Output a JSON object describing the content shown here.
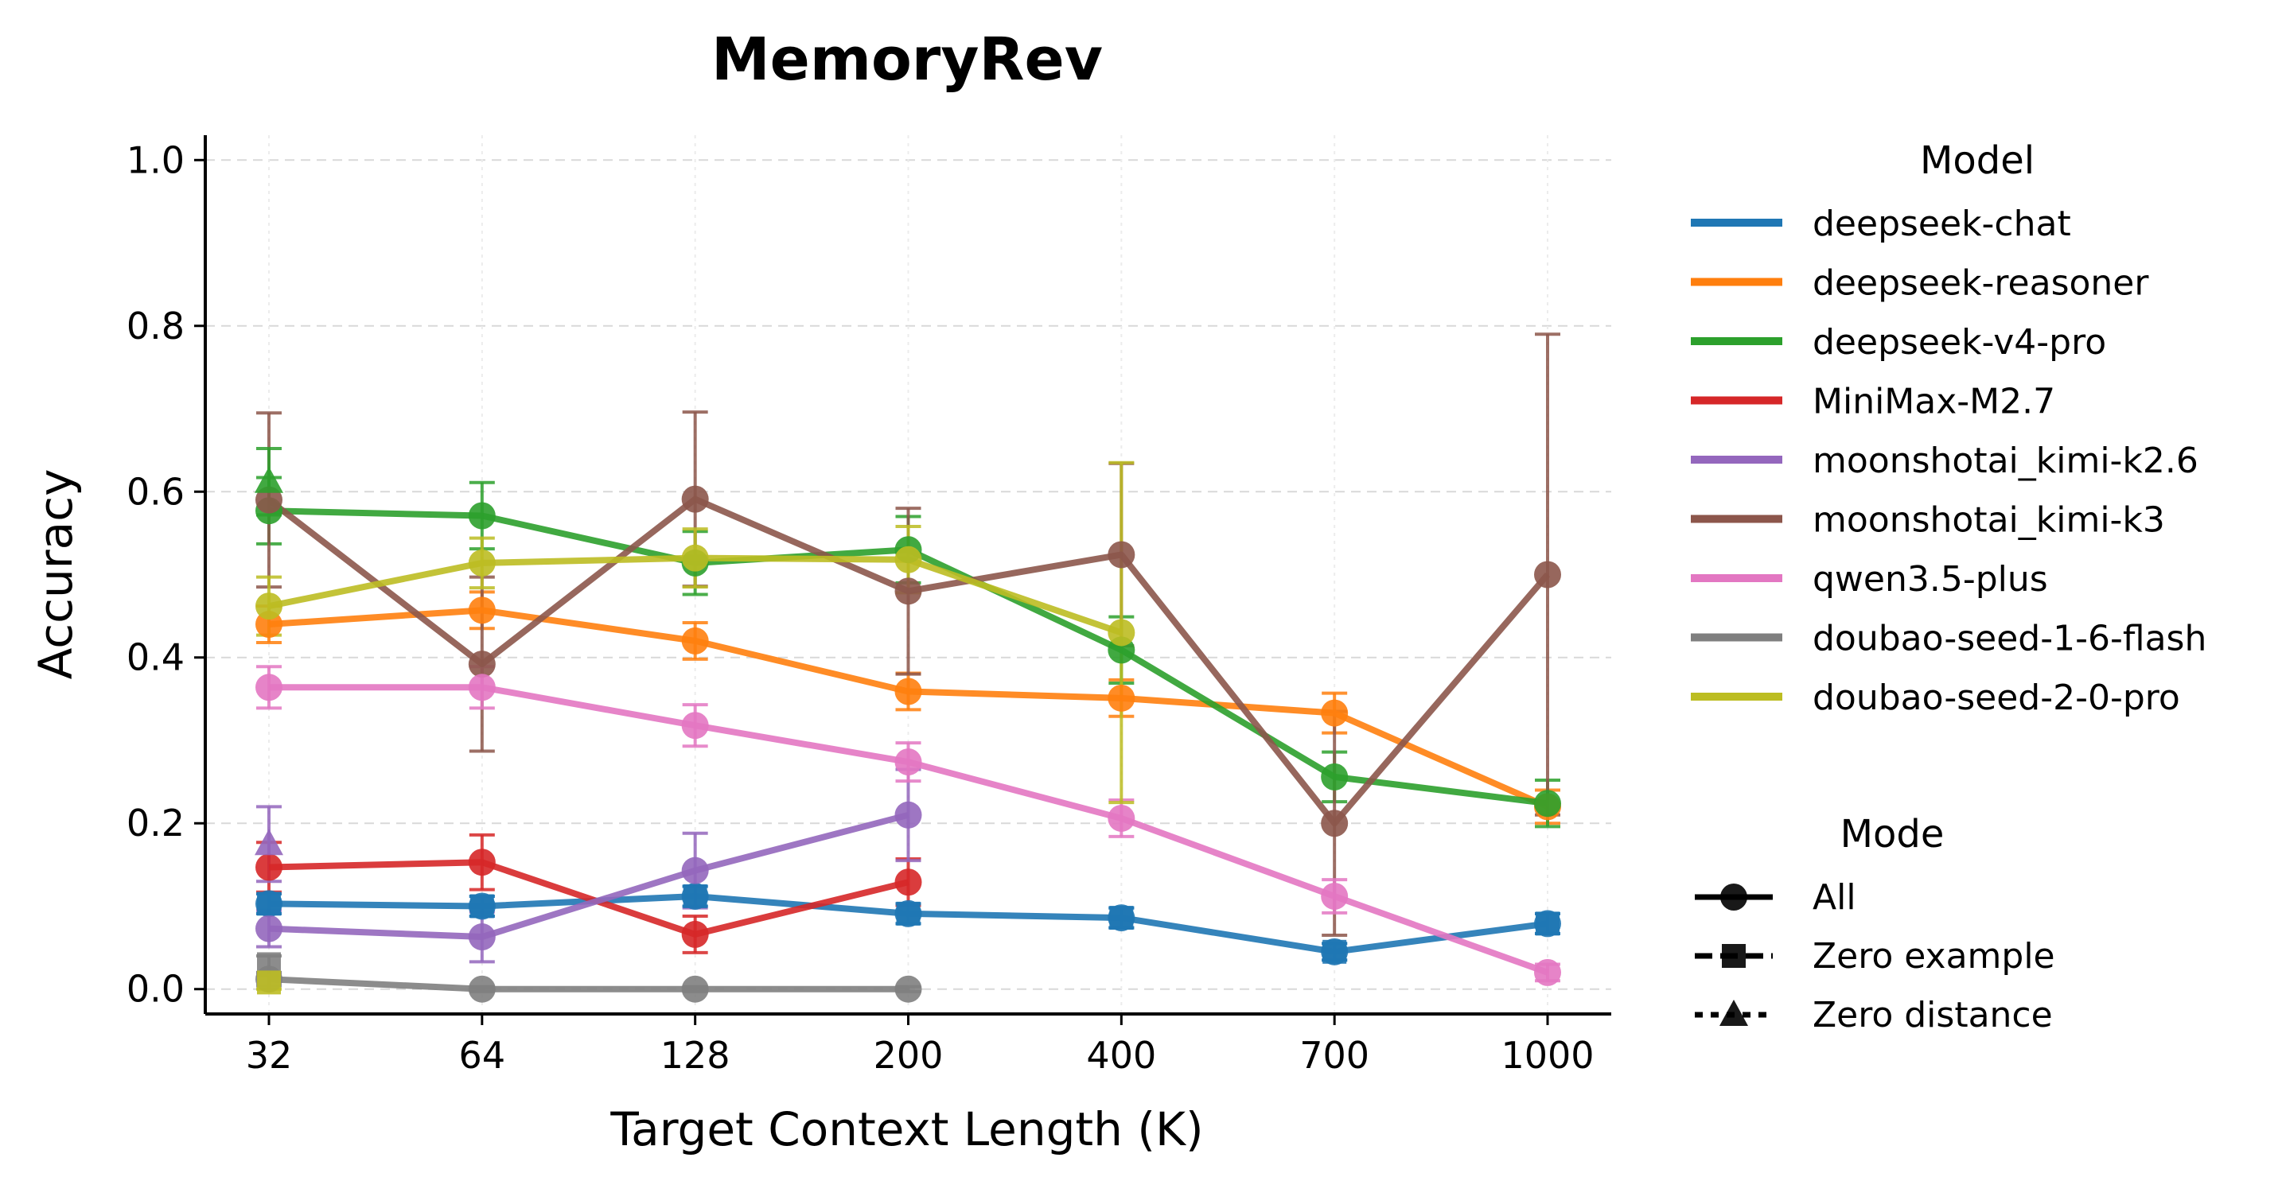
{
  "chart_data": {
    "type": "line",
    "title": "MemoryRev",
    "xlabel": "Target Context Length (K)",
    "ylabel": "Accuracy",
    "categories": [
      "32",
      "64",
      "128",
      "200",
      "400",
      "700",
      "1000"
    ],
    "ylim": [
      -0.03,
      1.03
    ],
    "yticks": [
      "0.0",
      "0.2",
      "0.4",
      "0.6",
      "0.8",
      "1.0"
    ],
    "grid": true,
    "legend_model_title": "Model",
    "legend_mode_title": "Mode",
    "legend_placement": "right, outside plot",
    "series": [
      {
        "name": "deepseek-chat",
        "color": "#1f77b4",
        "mode": "All",
        "values": [
          0.103,
          0.1,
          0.112,
          0.091,
          0.086,
          0.045,
          0.079
        ],
        "err": [
          0.012,
          0.012,
          0.012,
          0.012,
          0.012,
          0.01,
          0.012
        ]
      },
      {
        "name": "deepseek-reasoner",
        "color": "#ff7f0e",
        "mode": "All",
        "values": [
          0.44,
          0.457,
          0.42,
          0.359,
          0.351,
          0.333,
          0.22
        ],
        "err": [
          0.022,
          0.022,
          0.022,
          0.022,
          0.022,
          0.024,
          0.02
        ]
      },
      {
        "name": "deepseek-v4-pro",
        "color": "#2ca02c",
        "mode": "All",
        "values": [
          0.577,
          0.571,
          0.514,
          0.53,
          0.409,
          0.256,
          0.224
        ],
        "err": [
          0.04,
          0.04,
          0.038,
          0.04,
          0.04,
          0.03,
          0.028
        ]
      },
      {
        "name": "MiniMax-M2.7",
        "color": "#d62728",
        "mode": "All",
        "values": [
          0.147,
          0.153,
          0.066,
          0.129,
          null,
          null,
          null
        ],
        "err": [
          0.03,
          0.033,
          0.022,
          0.028,
          null,
          null,
          null
        ]
      },
      {
        "name": "moonshotai_kimi-k2.6",
        "color": "#9467bd",
        "mode": "All",
        "values": [
          0.073,
          0.063,
          0.143,
          0.21,
          null,
          null,
          null
        ],
        "err": [
          0.022,
          0.03,
          0.045,
          0.055,
          null,
          null,
          null
        ]
      },
      {
        "name": "moonshotai_kimi-k3",
        "color": "#8c564b",
        "mode": "All",
        "values": [
          0.59,
          0.392,
          0.591,
          0.48,
          0.524,
          0.2,
          0.5
        ],
        "err": [
          0.105,
          0.105,
          0.105,
          0.1,
          0.11,
          0.135,
          0.29
        ]
      },
      {
        "name": "qwen3.5-plus",
        "color": "#e377c2",
        "mode": "All",
        "values": [
          0.364,
          0.364,
          0.318,
          0.274,
          0.206,
          0.112,
          0.02
        ],
        "err": [
          0.025,
          0.025,
          0.025,
          0.023,
          0.022,
          0.02,
          0.01
        ]
      },
      {
        "name": "doubao-seed-1-6-flash",
        "color": "#7f7f7f",
        "mode": "All",
        "values": [
          0.012,
          0.0,
          0.0,
          0.0,
          null,
          null,
          null
        ],
        "err": [
          0.008,
          0.003,
          0.003,
          0.003,
          null,
          null,
          null
        ]
      },
      {
        "name": "doubao-seed-2-0-pro",
        "color": "#bcbd22",
        "mode": "All",
        "values": [
          0.462,
          0.514,
          0.52,
          0.518,
          0.43,
          null,
          null
        ],
        "err": [
          0.035,
          0.03,
          0.035,
          0.04,
          0.205,
          null,
          null
        ]
      }
    ],
    "extra_points": [
      {
        "series": "deepseek-chat",
        "mode": "Zero example",
        "category": "32",
        "value": 0.103,
        "err": 0.012
      },
      {
        "series": "deepseek-chat",
        "mode": "Zero example",
        "category": "64",
        "value": 0.1,
        "err": 0.012
      },
      {
        "series": "deepseek-chat",
        "mode": "Zero example",
        "category": "128",
        "value": 0.112,
        "err": 0.012
      },
      {
        "series": "deepseek-chat",
        "mode": "Zero example",
        "category": "200",
        "value": 0.091,
        "err": 0.012
      },
      {
        "series": "deepseek-chat",
        "mode": "Zero example",
        "category": "400",
        "value": 0.086,
        "err": 0.012
      },
      {
        "series": "deepseek-chat",
        "mode": "Zero example",
        "category": "700",
        "value": 0.045,
        "err": 0.01
      },
      {
        "series": "deepseek-chat",
        "mode": "Zero example",
        "category": "1000",
        "value": 0.079,
        "err": 0.012
      },
      {
        "series": "doubao-seed-1-6-flash",
        "mode": "Zero example",
        "category": "32",
        "value": 0.03,
        "err": 0.01
      },
      {
        "series": "doubao-seed-2-0-pro",
        "mode": "Zero example",
        "category": "32",
        "value": 0.008,
        "err": 0.008
      },
      {
        "series": "deepseek-v4-pro",
        "mode": "Zero distance",
        "category": "32",
        "value": 0.612,
        "err": 0.04
      },
      {
        "series": "moonshotai_kimi-k2.6",
        "mode": "Zero distance",
        "category": "32",
        "value": 0.175,
        "err": 0.045
      }
    ],
    "modes": [
      {
        "name": "All",
        "marker": "circle"
      },
      {
        "name": "Zero example",
        "marker": "square"
      },
      {
        "name": "Zero distance",
        "marker": "triangle"
      }
    ]
  }
}
